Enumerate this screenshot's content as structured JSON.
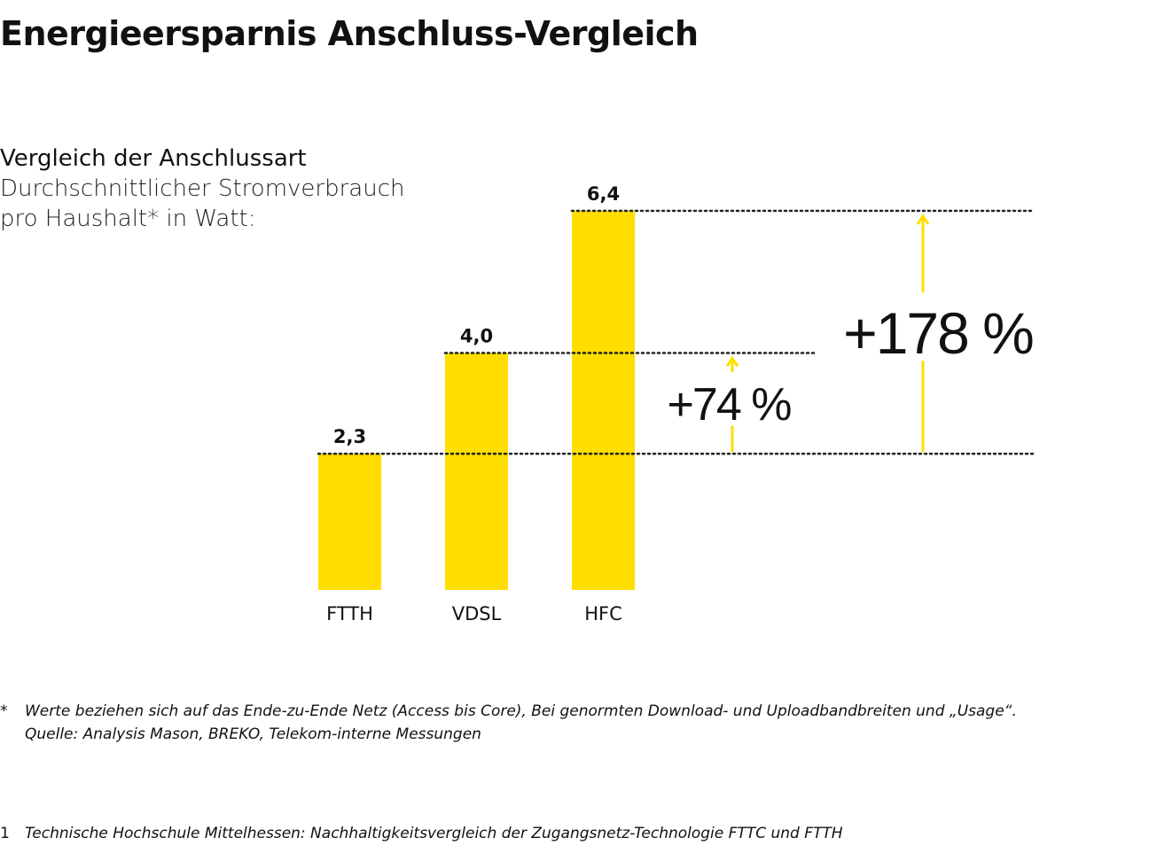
{
  "title": "Energieersparnis Anschluss-Vergleich",
  "subtitle": {
    "line1": "Vergleich der Anschlussart",
    "line2": "Durchschnittlicher Stromverbrauch",
    "line3": "pro Haushalt* in Watt:"
  },
  "chart_data": {
    "type": "bar",
    "categories": [
      "FTTH",
      "VDSL",
      "HFC"
    ],
    "values": [
      2.3,
      4.0,
      6.4
    ],
    "value_labels": [
      "2,3",
      "4,0",
      "6,4"
    ],
    "ylim": [
      0,
      6.4
    ],
    "grid": false,
    "bar_color": "#FFDE00",
    "arrow_color": "#FFDE00",
    "annotations": [
      {
        "label": "+74 %",
        "from": "FTTH",
        "to": "VDSL"
      },
      {
        "label": "+178 %",
        "from": "FTTH",
        "to": "HFC"
      }
    ]
  },
  "footnotes": {
    "star_mark": "*",
    "star_line1": "Werte beziehen sich auf das Ende-zu-Ende Netz (Access bis Core), Bei genormten Download- und Uploadbandbreiten und „Usage“.",
    "star_line2": "Quelle: Analysis Mason, BREKO, Telekom-interne Messungen",
    "one_mark": "1",
    "one_text": "Technische Hochschule Mittelhessen: Nachhaltigkeitsvergleich der Zugangsnetz-Technologie FTTC und FTTH"
  }
}
